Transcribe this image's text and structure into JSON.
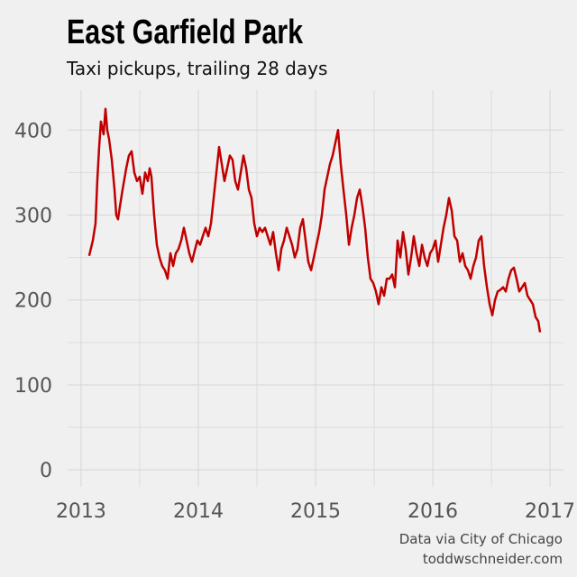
{
  "chart_data": {
    "type": "line",
    "title": "East Garfield Park",
    "subtitle": "Taxi pickups, trailing 28 days",
    "source": [
      "Data via City of Chicago",
      "toddwschneider.com"
    ],
    "xlim": [
      2012.885,
      2017.115
    ],
    "xticks": [
      2013,
      2014,
      2015,
      2016,
      2017
    ],
    "ylim": [
      -20,
      447
    ],
    "yticks": [
      0,
      100,
      200,
      300,
      400
    ],
    "grid": true,
    "minor_grid": true,
    "x": [
      2013.069,
      2013.1,
      2013.123,
      2013.138,
      2013.154,
      2013.169,
      2013.192,
      2013.208,
      2013.223,
      2013.238,
      2013.262,
      2013.285,
      2013.3,
      2013.315,
      2013.331,
      2013.354,
      2013.385,
      2013.408,
      2013.431,
      2013.454,
      2013.477,
      2013.5,
      2013.523,
      2013.546,
      2013.569,
      2013.585,
      2013.6,
      2013.623,
      2013.646,
      2013.669,
      2013.692,
      2013.715,
      2013.738,
      2013.762,
      2013.785,
      2013.808,
      2013.831,
      2013.854,
      2013.877,
      2013.9,
      2013.923,
      2013.946,
      2013.969,
      2013.992,
      2014.015,
      2014.038,
      2014.062,
      2014.085,
      2014.108,
      2014.131,
      2014.154,
      2014.177,
      2014.2,
      2014.223,
      2014.246,
      2014.269,
      2014.292,
      2014.315,
      2014.338,
      2014.362,
      2014.385,
      2014.408,
      2014.431,
      2014.454,
      2014.477,
      2014.5,
      2014.523,
      2014.546,
      2014.569,
      2014.592,
      2014.615,
      2014.638,
      2014.662,
      2014.685,
      2014.708,
      2014.731,
      2014.754,
      2014.777,
      2014.8,
      2014.823,
      2014.846,
      2014.869,
      2014.892,
      2014.915,
      2014.938,
      2014.962,
      2014.985,
      2015.008,
      2015.031,
      2015.054,
      2015.077,
      2015.1,
      2015.123,
      2015.146,
      2015.169,
      2015.192,
      2015.215,
      2015.238,
      2015.262,
      2015.285,
      2015.308,
      2015.331,
      2015.354,
      2015.377,
      2015.4,
      2015.423,
      2015.446,
      2015.469,
      2015.492,
      2015.515,
      2015.538,
      2015.562,
      2015.585,
      2015.608,
      2015.631,
      2015.654,
      2015.677,
      2015.7,
      2015.723,
      2015.746,
      2015.769,
      2015.792,
      2015.815,
      2015.838,
      2015.862,
      2015.885,
      2015.908,
      2015.931,
      2015.954,
      2015.977,
      2016.0,
      2016.023,
      2016.046,
      2016.069,
      2016.092,
      2016.115,
      2016.138,
      2016.162,
      2016.185,
      2016.208,
      2016.231,
      2016.254,
      2016.277,
      2016.3,
      2016.323,
      2016.346,
      2016.369,
      2016.392,
      2016.415,
      2016.438,
      2016.462,
      2016.485,
      2016.508,
      2016.531,
      2016.554,
      2016.577,
      2016.6,
      2016.623,
      2016.646,
      2016.669,
      2016.692,
      2016.715,
      2016.738,
      2016.762,
      2016.785,
      2016.808,
      2016.831,
      2016.854,
      2016.877,
      2016.9,
      2016.915
    ],
    "series": [
      {
        "color": "#c00000",
        "values": [
          252,
          270,
          290,
          340,
          380,
          410,
          395,
          425,
          400,
          390,
          365,
          330,
          300,
          295,
          310,
          330,
          355,
          370,
          375,
          350,
          340,
          345,
          325,
          350,
          340,
          355,
          345,
          300,
          265,
          250,
          240,
          235,
          225,
          255,
          240,
          255,
          260,
          270,
          285,
          270,
          255,
          245,
          258,
          270,
          265,
          275,
          285,
          275,
          290,
          320,
          350,
          380,
          360,
          340,
          355,
          370,
          365,
          340,
          330,
          350,
          370,
          355,
          330,
          320,
          290,
          275,
          285,
          280,
          285,
          275,
          265,
          280,
          255,
          235,
          260,
          270,
          285,
          275,
          265,
          250,
          260,
          285,
          295,
          270,
          245,
          235,
          250,
          265,
          280,
          300,
          330,
          345,
          360,
          370,
          385,
          400,
          360,
          330,
          300,
          265,
          285,
          300,
          320,
          330,
          310,
          285,
          250,
          225,
          220,
          210,
          195,
          215,
          205,
          225,
          225,
          230,
          215,
          270,
          250,
          280,
          260,
          230,
          250,
          275,
          255,
          240,
          265,
          250,
          240,
          255,
          260,
          270,
          245,
          265,
          285,
          300,
          320,
          305,
          275,
          270,
          245,
          255,
          240,
          235,
          225,
          240,
          250,
          270,
          275,
          240,
          215,
          195,
          182,
          200,
          210,
          212,
          215,
          210,
          225,
          235,
          238,
          225,
          210,
          215,
          220,
          205,
          200,
          195,
          180,
          175,
          162
        ]
      }
    ]
  }
}
